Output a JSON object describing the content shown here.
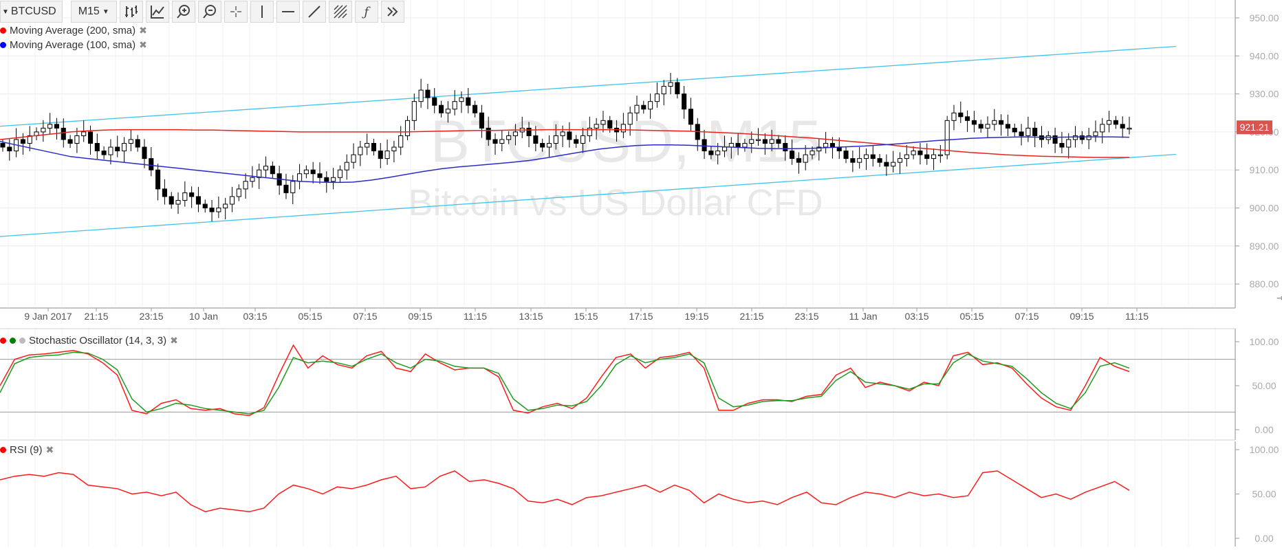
{
  "toolbar": {
    "symbol": "BTCUSD",
    "interval": "M15",
    "tools": [
      "bar-type-icon",
      "indicators-icon",
      "zoom-in-icon",
      "zoom-out-icon",
      "crosshair-icon",
      "vertical-line-icon",
      "horizontal-line-icon",
      "trend-line-icon",
      "fibonacci-icon",
      "function-icon",
      "more-icon"
    ]
  },
  "watermark": {
    "line1": "BTCUSD, M15",
    "line2": "Bitcoin vs US Dollar CFD"
  },
  "legend": {
    "ma200": {
      "label": "Moving Average (200, sma)",
      "color": "#ff0000"
    },
    "ma100": {
      "label": "Moving Average (100, sma)",
      "color": "#0000ff"
    },
    "stoch": {
      "label": "Stochastic Oscillator (14, 3, 3)",
      "colors": [
        "#ff0000",
        "#008000",
        "#bbbbbb"
      ]
    },
    "rsi": {
      "label": "RSI (9)",
      "color": "#ff0000"
    }
  },
  "colors": {
    "channel": "#3ec3ec",
    "ma200": "#e8211b",
    "ma100": "#2a2ac8",
    "candle": "#000000",
    "price_tag": "#d9534f",
    "stoch_k": "#ff1a1a",
    "stoch_d": "#1e9a1e",
    "rsi": "#ff1a1a"
  },
  "chart_data": [
    {
      "type": "candlestick",
      "title": "BTCUSD, M15",
      "subtitle": "Bitcoin vs US Dollar CFD",
      "y_ticks": [
        "950.00",
        "940.00",
        "930.00",
        "920.00",
        "910.00",
        "900.00",
        "890.00",
        "880.00"
      ],
      "ylim": [
        876,
        952
      ],
      "x_labels": [
        "9 Jan 2017",
        "21:15",
        "23:15",
        "10 Jan",
        "03:15",
        "05:15",
        "07:15",
        "09:15",
        "11:15",
        "13:15",
        "15:15",
        "17:15",
        "19:15",
        "21:15",
        "23:15",
        "11 Jan",
        "03:15",
        "05:15",
        "07:15",
        "09:15",
        "11:15"
      ],
      "current_price": "921.21",
      "grid": true,
      "close": [
        916,
        915,
        918,
        917,
        919,
        920,
        921,
        922,
        921,
        918,
        917,
        919,
        920,
        917,
        915,
        914,
        916,
        915,
        917,
        918,
        916,
        913,
        910,
        905,
        903,
        901,
        902,
        904,
        903,
        901,
        900,
        899,
        900,
        901,
        903,
        905,
        907,
        908,
        910,
        911,
        909,
        906,
        904,
        907,
        909,
        910,
        909,
        908,
        907,
        908,
        910,
        912,
        914,
        916,
        917,
        915,
        913,
        915,
        916,
        919,
        923,
        928,
        931,
        929,
        927,
        925,
        926,
        928,
        929,
        927,
        925,
        921,
        918,
        917,
        918,
        919,
        920,
        921,
        919,
        917,
        916,
        917,
        919,
        920,
        918,
        917,
        919,
        921,
        922,
        923,
        921,
        920,
        922,
        925,
        927,
        926,
        928,
        930,
        932,
        933,
        930,
        926,
        922,
        918,
        915,
        914,
        915,
        916,
        917,
        916,
        917,
        918,
        918,
        917,
        918,
        917,
        915,
        913,
        912,
        914,
        915,
        916,
        917,
        916,
        915,
        913,
        912,
        913,
        914,
        913,
        912,
        911,
        912,
        913,
        914,
        915,
        914,
        913,
        914,
        914,
        923,
        925,
        924,
        923,
        922,
        921,
        922,
        923,
        922,
        921,
        920,
        919,
        921,
        919,
        918,
        919,
        917,
        916,
        918,
        919,
        918,
        919,
        920,
        922,
        923,
        922,
        921,
        921
      ],
      "series": [
        {
          "name": "Moving Average (200, sma)",
          "values": [
            918,
            918.5,
            919,
            919.5,
            920,
            920.3,
            920.5,
            920.6,
            920.6,
            920.6,
            920.6,
            920.5,
            920.5,
            920.4,
            920.3,
            920.2,
            920.1,
            920,
            920,
            920,
            920,
            920,
            920,
            920,
            920.1,
            920.2,
            920.3,
            920.4,
            920.4,
            920.5,
            920.5,
            920.6,
            920.6,
            920.6,
            920.6,
            920.6,
            920.5,
            920.4,
            920.3,
            920.2,
            920,
            919.8,
            919.6,
            919.3,
            919,
            918.7,
            918.4,
            918,
            917.6,
            917.2,
            916.8,
            916.3,
            915.8,
            915.4,
            915,
            914.6,
            914.3,
            914,
            913.8,
            913.6,
            913.5,
            913.4,
            913.3,
            913.3,
            913.3
          ]
        },
        {
          "name": "Moving Average (100, sma)",
          "values": [
            917.5,
            916.5,
            915.5,
            914.5,
            913.5,
            913,
            912.5,
            912,
            911.5,
            911,
            910.5,
            910,
            909.5,
            909,
            908.5,
            908,
            907.5,
            907,
            906.8,
            906.7,
            906.8,
            907.3,
            908,
            908.8,
            909.6,
            910.3,
            910.8,
            911.2,
            911.6,
            912,
            912.5,
            913.2,
            914,
            914.8,
            915.5,
            916,
            916.4,
            916.6,
            916.6,
            916.5,
            916.3,
            916.1,
            915.9,
            915.7,
            915.6,
            915.6,
            915.7,
            915.9,
            916.1,
            916.3,
            916.6,
            916.9,
            917.3,
            917.7,
            918,
            918.3,
            918.5,
            918.6,
            918.7,
            918.6,
            918.6,
            918.7,
            918.7,
            918.7,
            918.6
          ]
        },
        {
          "name": "Channel upper",
          "values": [
            921.5,
            942.5
          ]
        },
        {
          "name": "Channel lower",
          "values": [
            892.5,
            914.1
          ]
        }
      ]
    },
    {
      "type": "line",
      "title": "Stochastic Oscillator (14, 3, 3)",
      "y_ticks": [
        "100.00",
        "50.00",
        "0.00"
      ],
      "ylim": [
        0,
        100
      ],
      "levels": [
        80,
        20
      ],
      "series": [
        {
          "name": "%K",
          "values": [
            50,
            80,
            85,
            86,
            88,
            90,
            86,
            76,
            62,
            22,
            18,
            30,
            34,
            24,
            22,
            24,
            18,
            16,
            25,
            62,
            96,
            70,
            84,
            74,
            70,
            84,
            89,
            70,
            66,
            86,
            76,
            68,
            70,
            70,
            60,
            22,
            19,
            26,
            30,
            24,
            36,
            60,
            82,
            86,
            70,
            82,
            84,
            88,
            70,
            22,
            22,
            30,
            34,
            34,
            32,
            38,
            40,
            62,
            70,
            48,
            54,
            50,
            44,
            54,
            50,
            84,
            88,
            74,
            76,
            70,
            52,
            36,
            26,
            22,
            50,
            82,
            72,
            66
          ]
        },
        {
          "name": "%D",
          "values": [
            42,
            75,
            82,
            84,
            85,
            88,
            87,
            80,
            68,
            35,
            20,
            24,
            30,
            28,
            24,
            22,
            20,
            18,
            22,
            48,
            82,
            76,
            78,
            76,
            72,
            80,
            86,
            76,
            70,
            80,
            78,
            72,
            70,
            70,
            64,
            35,
            22,
            24,
            28,
            27,
            32,
            50,
            74,
            84,
            76,
            80,
            82,
            86,
            76,
            36,
            26,
            28,
            32,
            33,
            33,
            36,
            38,
            56,
            66,
            54,
            52,
            50,
            46,
            52,
            52,
            76,
            86,
            78,
            75,
            72,
            58,
            42,
            30,
            24,
            42,
            72,
            76,
            70
          ]
        }
      ]
    },
    {
      "type": "line",
      "title": "RSI (9)",
      "y_ticks": [
        "100.00",
        "50.00",
        "0.00"
      ],
      "ylim": [
        0,
        100
      ],
      "series": [
        {
          "name": "RSI (9)",
          "values": [
            66,
            70,
            72,
            70,
            74,
            72,
            60,
            58,
            56,
            50,
            52,
            48,
            52,
            38,
            30,
            34,
            32,
            30,
            34,
            50,
            60,
            56,
            50,
            58,
            56,
            60,
            66,
            70,
            56,
            58,
            70,
            76,
            64,
            66,
            62,
            56,
            42,
            40,
            44,
            38,
            46,
            48,
            52,
            56,
            60,
            52,
            60,
            54,
            40,
            50,
            44,
            40,
            42,
            38,
            46,
            52,
            40,
            38,
            46,
            52,
            50,
            46,
            52,
            48,
            50,
            46,
            48,
            74,
            76,
            66,
            56,
            46,
            50,
            44,
            52,
            58,
            64,
            54
          ]
        }
      ]
    }
  ]
}
